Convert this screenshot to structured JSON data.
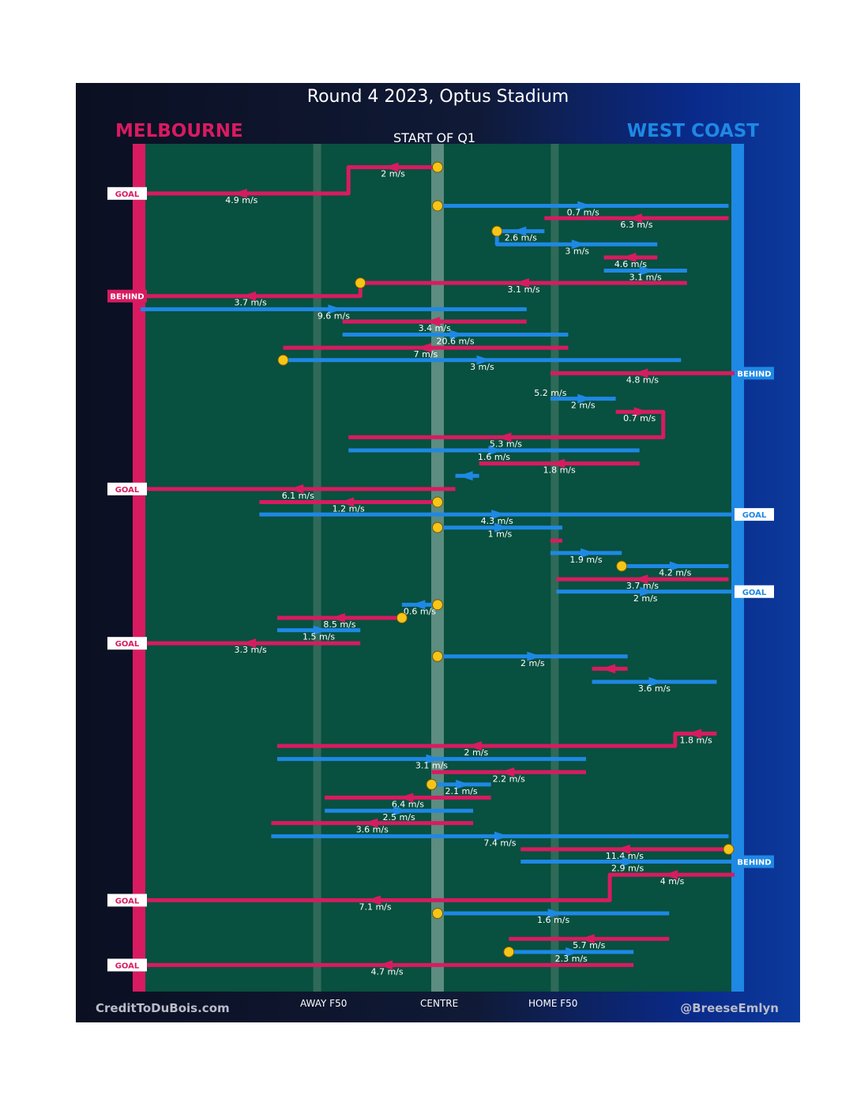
{
  "title": "Round 4 2023, Optus Stadium",
  "teams": {
    "left": "MELBOURNE",
    "right": "WEST COAST"
  },
  "start_label": "START OF Q1",
  "zones": {
    "away": "AWAY F50",
    "centre": "CENTRE",
    "home": "HOME F50"
  },
  "footer": {
    "credit": "CreditToDuBois.com",
    "handle": "@BreeseEmlyn"
  },
  "colors": {
    "melbourne": "#d81b60",
    "west_coast": "#1e88e5",
    "field": "#08503f",
    "marker": "#f5c518"
  },
  "chart_data": {
    "type": "chain-flow",
    "title": "Round 4 2023, Optus Stadium",
    "x_range": [
      0,
      100
    ],
    "x_reference": {
      "melbourne_goal": 0,
      "away_f50": 30,
      "centre": 50,
      "home_f50": 70,
      "west_coast_goal": 100
    },
    "y_range": [
      0,
      1068
    ],
    "chains": [
      {
        "team": "MEL",
        "segments": [
          {
            "from": 50,
            "to": 35,
            "y": 16,
            "speed": "2 m/s"
          },
          {
            "from": 34,
            "to": 0,
            "y": 50,
            "speed": "4.9 m/s"
          }
        ],
        "restart": 50,
        "result": "GOAL",
        "result_y": 50
      },
      {
        "team": "WCE",
        "segments": [
          {
            "from": 50,
            "to": 99,
            "y": 66,
            "speed": "0.7 m/s"
          }
        ],
        "restart": 50
      },
      {
        "team": "MEL",
        "segments": [
          {
            "from": 99,
            "to": 68,
            "y": 82,
            "speed": "6.3 m/s"
          }
        ]
      },
      {
        "team": "WCE",
        "segments": [
          {
            "from": 68,
            "to": 60,
            "y": 99,
            "speed": "2.6 m/s"
          },
          {
            "from": 60,
            "to": 87,
            "y": 116,
            "speed": "3 m/s"
          }
        ],
        "restart": 60
      },
      {
        "team": "MEL",
        "segments": [
          {
            "from": 87,
            "to": 78,
            "y": 133,
            "speed": "4.6 m/s"
          }
        ]
      },
      {
        "team": "WCE",
        "segments": [
          {
            "from": 78,
            "to": 92,
            "y": 150,
            "speed": "3.1 m/s"
          }
        ]
      },
      {
        "team": "MEL",
        "segments": [
          {
            "from": 92,
            "to": 37,
            "y": 166,
            "speed": "3.1 m/s"
          },
          {
            "from": 37,
            "to": 0,
            "y": 183,
            "speed": "3.7 m/s"
          }
        ],
        "restart": 37,
        "result": "BEHIND",
        "result_y": 183
      },
      {
        "team": "WCE",
        "segments": [
          {
            "from": 0,
            "to": 65,
            "y": 200,
            "speed": "9.6 m/s"
          }
        ]
      },
      {
        "team": "MEL",
        "segments": [
          {
            "from": 65,
            "to": 34,
            "y": 216,
            "speed": "3.4 m/s"
          }
        ]
      },
      {
        "team": "WCE",
        "segments": [
          {
            "from": 34,
            "to": 72,
            "y": 233,
            "speed": "20.6 m/s"
          }
        ]
      },
      {
        "team": "MEL",
        "segments": [
          {
            "from": 72,
            "to": 24,
            "y": 250,
            "speed": "7 m/s"
          }
        ]
      },
      {
        "team": "WCE",
        "segments": [
          {
            "from": 24,
            "to": 91,
            "y": 266,
            "speed": "3 m/s"
          }
        ],
        "restart": 24
      },
      {
        "team": "MEL",
        "segments": [
          {
            "from": 100,
            "to": 69,
            "y": 283,
            "speed": "4.8 m/s"
          }
        ],
        "result": "BEHIND",
        "result_y": 283,
        "result_team": "WCE"
      },
      {
        "team": "MEL",
        "segments": [
          {
            "from": 69,
            "to": 69,
            "y": 300,
            "speed": "5.2 m/s"
          }
        ]
      },
      {
        "team": "WCE",
        "segments": [
          {
            "from": 69,
            "to": 80,
            "y": 316,
            "speed": "2 m/s"
          }
        ]
      },
      {
        "team": "MEL",
        "segments": [
          {
            "from": 80,
            "to": 88,
            "y": 333,
            "speed": "0.7 m/s"
          },
          {
            "from": 88,
            "to": 35,
            "y": 366,
            "speed": "5.3 m/s"
          }
        ]
      },
      {
        "team": "WCE",
        "segments": [
          {
            "from": 35,
            "to": 84,
            "y": 383,
            "speed": "1.6 m/s"
          }
        ]
      },
      {
        "team": "MEL",
        "segments": [
          {
            "from": 84,
            "to": 57,
            "y": 400,
            "speed": "1.8 m/s"
          }
        ]
      },
      {
        "team": "WCE",
        "segments": [
          {
            "from": 57,
            "to": 53,
            "y": 416,
            "speed": ""
          }
        ]
      },
      {
        "team": "MEL",
        "segments": [
          {
            "from": 53,
            "to": 0,
            "y": 433,
            "speed": "6.1 m/s"
          }
        ],
        "result": "GOAL",
        "result_y": 433
      },
      {
        "team": "MEL",
        "segments": [
          {
            "from": 50,
            "to": 20,
            "y": 450,
            "speed": "1.2 m/s"
          }
        ],
        "restart": 50
      },
      {
        "team": "WCE",
        "segments": [
          {
            "from": 20,
            "to": 100,
            "y": 466,
            "speed": "4.3 m/s"
          }
        ],
        "result": "GOAL",
        "result_y": 466
      },
      {
        "team": "WCE",
        "segments": [
          {
            "from": 50,
            "to": 71,
            "y": 483,
            "speed": "1 m/s"
          }
        ],
        "restart": 50
      },
      {
        "team": "MEL",
        "segments": [
          {
            "from": 71,
            "to": 69,
            "y": 500,
            "speed": ""
          }
        ]
      },
      {
        "team": "WCE",
        "segments": [
          {
            "from": 69,
            "to": 81,
            "y": 516,
            "speed": "1.9 m/s"
          }
        ]
      },
      {
        "team": "WCE",
        "segments": [
          {
            "from": 81,
            "to": 99,
            "y": 533,
            "speed": "4.2 m/s"
          }
        ],
        "restart": 81
      },
      {
        "team": "MEL",
        "segments": [
          {
            "from": 99,
            "to": 70,
            "y": 550,
            "speed": "3.7 m/s"
          }
        ]
      },
      {
        "team": "WCE",
        "segments": [
          {
            "from": 70,
            "to": 100,
            "y": 566,
            "speed": "2 m/s"
          }
        ],
        "result": "GOAL",
        "result_y": 566
      },
      {
        "team": "WCE",
        "segments": [
          {
            "from": 50,
            "to": 44,
            "y": 583,
            "speed": "0.6 m/s"
          }
        ],
        "restart": 50
      },
      {
        "team": "MEL",
        "segments": [
          {
            "from": 44,
            "to": 23,
            "y": 600,
            "speed": "8.5 m/s"
          }
        ],
        "restart": 44
      },
      {
        "team": "WCE",
        "segments": [
          {
            "from": 23,
            "to": 37,
            "y": 616,
            "speed": "1.5 m/s"
          }
        ]
      },
      {
        "team": "MEL",
        "segments": [
          {
            "from": 37,
            "to": 0,
            "y": 633,
            "speed": "3.3 m/s"
          }
        ],
        "result": "GOAL",
        "result_y": 633
      },
      {
        "team": "WCE",
        "segments": [
          {
            "from": 50,
            "to": 82,
            "y": 650,
            "speed": "2 m/s"
          }
        ],
        "restart": 50
      },
      {
        "team": "MEL",
        "segments": [
          {
            "from": 82,
            "to": 76,
            "y": 666,
            "speed": ""
          }
        ]
      },
      {
        "team": "WCE",
        "segments": [
          {
            "from": 76,
            "to": 97,
            "y": 683,
            "speed": "3.6 m/s"
          }
        ]
      },
      {
        "team": "MEL",
        "segments": [
          {
            "from": 97,
            "to": 97,
            "y": 716,
            "speed": ""
          }
        ]
      },
      {
        "team": "MEL",
        "segments": [
          {
            "from": 97,
            "to": 90,
            "y": 750,
            "speed": "1.8 m/s"
          },
          {
            "from": 90,
            "to": 23,
            "y": 766,
            "speed": "2 m/s"
          }
        ]
      },
      {
        "team": "WCE",
        "segments": [
          {
            "from": 23,
            "to": 75,
            "y": 783,
            "speed": "3.1 m/s"
          }
        ]
      },
      {
        "team": "MEL",
        "segments": [
          {
            "from": 75,
            "to": 49,
            "y": 800,
            "speed": "2.2 m/s"
          }
        ]
      },
      {
        "team": "WCE",
        "segments": [
          {
            "from": 49,
            "to": 59,
            "y": 816,
            "speed": "2.1 m/s"
          }
        ],
        "restart": 49
      },
      {
        "team": "MEL",
        "segments": [
          {
            "from": 59,
            "to": 31,
            "y": 833,
            "speed": "6.4 m/s"
          }
        ]
      },
      {
        "team": "WCE",
        "segments": [
          {
            "from": 31,
            "to": 56,
            "y": 850,
            "speed": "2.5 m/s"
          }
        ]
      },
      {
        "team": "MEL",
        "segments": [
          {
            "from": 56,
            "to": 22,
            "y": 866,
            "speed": "3.6 m/s"
          }
        ]
      },
      {
        "team": "WCE",
        "segments": [
          {
            "from": 22,
            "to": 99,
            "y": 883,
            "speed": "7.4 m/s"
          }
        ]
      },
      {
        "team": "MEL",
        "segments": [
          {
            "from": 99,
            "to": 64,
            "y": 900,
            "speed": "11.4 m/s"
          }
        ],
        "restart": 99
      },
      {
        "team": "WCE",
        "segments": [
          {
            "from": 64,
            "to": 100,
            "y": 916,
            "speed": "2.9 m/s"
          }
        ],
        "result": "BEHIND",
        "result_y": 916
      },
      {
        "team": "MEL",
        "segments": [
          {
            "from": 100,
            "to": 79,
            "y": 933,
            "speed": "4 m/s"
          },
          {
            "from": 79,
            "to": 0,
            "y": 966,
            "speed": "7.1 m/s"
          }
        ],
        "result": "GOAL",
        "result_y": 966
      },
      {
        "team": "WCE",
        "segments": [
          {
            "from": 50,
            "to": 89,
            "y": 983,
            "speed": "1.6 m/s"
          }
        ],
        "restart": 50
      },
      {
        "team": "MEL",
        "segments": [
          {
            "from": 89,
            "to": 62,
            "y": 1016,
            "speed": "5.7 m/s"
          }
        ]
      },
      {
        "team": "WCE",
        "segments": [
          {
            "from": 62,
            "to": 83,
            "y": 1033,
            "speed": "2.3 m/s"
          }
        ],
        "restart": 62
      },
      {
        "team": "MEL",
        "segments": [
          {
            "from": 83,
            "to": 0,
            "y": 1050,
            "speed": "4.7 m/s"
          }
        ],
        "result": "GOAL",
        "result_y": 1050
      }
    ],
    "results": [
      {
        "team": "MEL",
        "label": "GOAL",
        "y": 50
      },
      {
        "team": "MEL",
        "label": "BEHIND",
        "y": 183
      },
      {
        "team": "WCE",
        "label": "BEHIND",
        "y": 283
      },
      {
        "team": "MEL",
        "label": "GOAL",
        "y": 433
      },
      {
        "team": "WCE",
        "label": "GOAL",
        "y": 466
      },
      {
        "team": "WCE",
        "label": "GOAL",
        "y": 566
      },
      {
        "team": "MEL",
        "label": "GOAL",
        "y": 633
      },
      {
        "team": "WCE",
        "label": "BEHIND",
        "y": 916
      },
      {
        "team": "MEL",
        "label": "GOAL",
        "y": 966
      },
      {
        "team": "MEL",
        "label": "GOAL",
        "y": 1050
      }
    ]
  }
}
